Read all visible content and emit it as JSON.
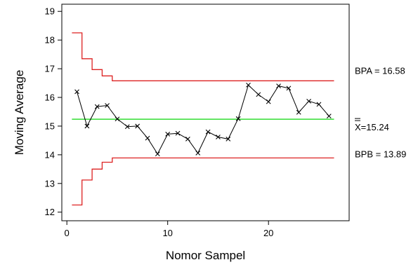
{
  "chart_data": {
    "type": "line",
    "title": "",
    "xlabel": "Nomor Sampel",
    "ylabel": "Moving Average",
    "xlim": [
      -0.5,
      28
    ],
    "ylim": [
      11.7,
      19.25
    ],
    "xticks": [
      0,
      10,
      20
    ],
    "yticks": [
      12,
      13,
      14,
      15,
      16,
      17,
      18,
      19
    ],
    "grid": false,
    "series": [
      {
        "name": "",
        "marker": "x",
        "color": "#000000",
        "x": [
          1,
          2,
          3,
          4,
          5,
          6,
          7,
          8,
          9,
          10,
          11,
          12,
          13,
          14,
          15,
          16,
          17,
          18,
          19,
          20,
          21,
          22,
          23,
          24,
          25,
          26
        ],
        "y": [
          16.2,
          15.0,
          15.68,
          15.72,
          15.25,
          14.98,
          15.0,
          14.58,
          14.03,
          14.72,
          14.75,
          14.55,
          14.06,
          14.8,
          14.62,
          14.55,
          15.26,
          16.43,
          16.1,
          15.85,
          16.4,
          16.32,
          15.48,
          15.87,
          15.76,
          15.35
        ]
      }
    ],
    "center_line": {
      "value": 15.24,
      "color": "#33dd33",
      "x_range": [
        0.5,
        26.5
      ]
    },
    "ucl": {
      "color": "#dd2222",
      "steps": [
        {
          "x0": 0.5,
          "x1": 1.5,
          "value": 18.25
        },
        {
          "x0": 1.5,
          "x1": 2.5,
          "value": 17.35
        },
        {
          "x0": 2.5,
          "x1": 3.5,
          "value": 16.97
        },
        {
          "x0": 3.5,
          "x1": 4.5,
          "value": 16.75
        },
        {
          "x0": 4.5,
          "x1": 26.5,
          "value": 16.58
        }
      ]
    },
    "lcl": {
      "color": "#dd2222",
      "steps": [
        {
          "x0": 0.5,
          "x1": 1.5,
          "value": 12.25
        },
        {
          "x0": 1.5,
          "x1": 2.5,
          "value": 13.12
        },
        {
          "x0": 2.5,
          "x1": 3.5,
          "value": 13.5
        },
        {
          "x0": 3.5,
          "x1": 4.5,
          "value": 13.74
        },
        {
          "x0": 4.5,
          "x1": 26.5,
          "value": 13.89
        }
      ]
    },
    "annotations": [
      {
        "id": "ucl",
        "text": "BPA = 16.58",
        "value": 16.58
      },
      {
        "id": "center",
        "text": "X=15.24",
        "value": 15.24
      },
      {
        "id": "lcl",
        "text": "BPB = 13.89",
        "value": 13.89
      }
    ]
  }
}
